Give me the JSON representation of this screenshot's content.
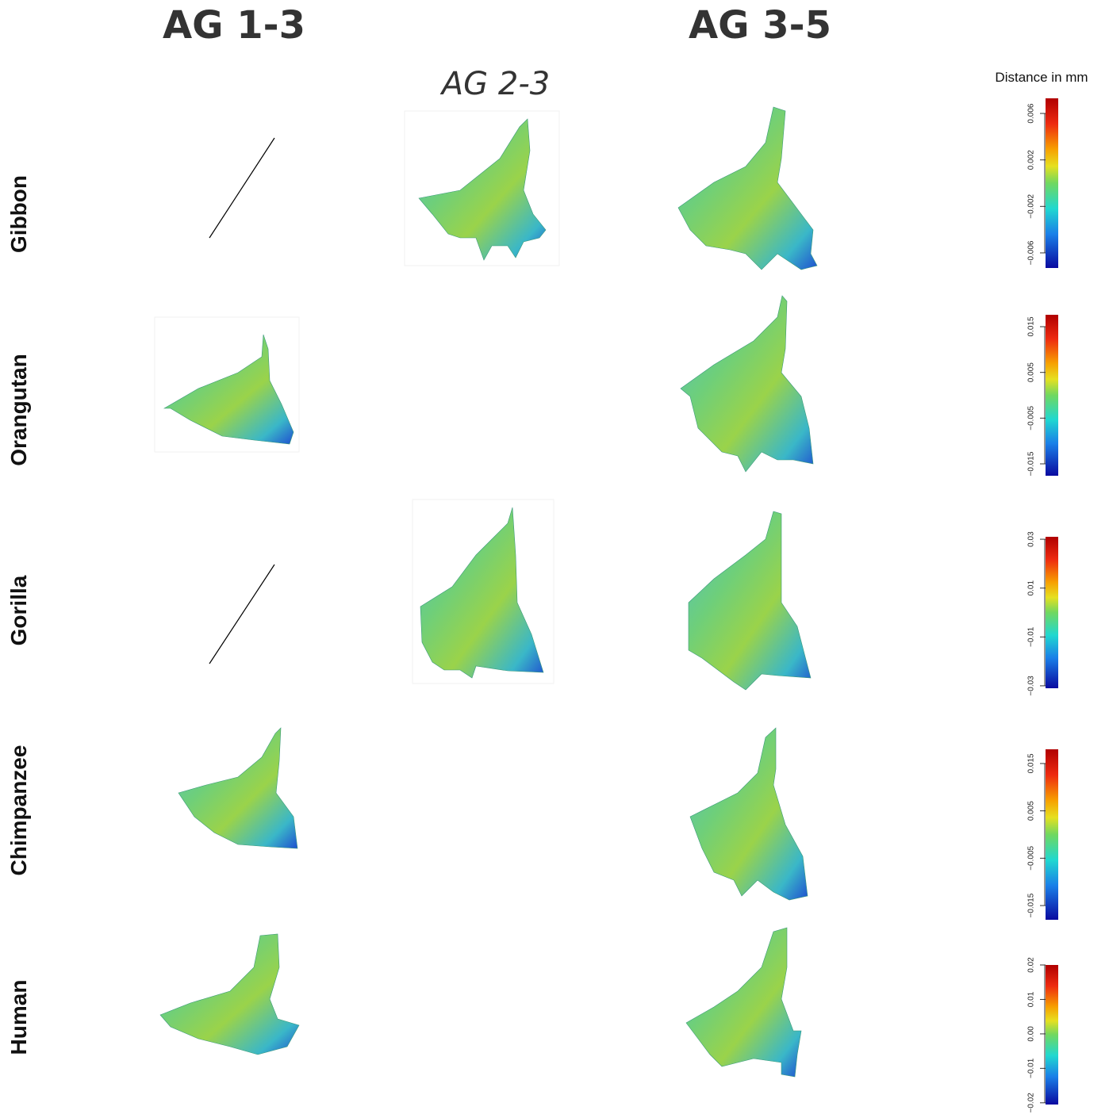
{
  "header": {
    "columns": [
      "AG 1-3",
      "AG 3-5"
    ],
    "subcolumn": "AG 2-3",
    "scale_title": "Distance in mm"
  },
  "rows": [
    "Gibbon",
    "Orangutan",
    "Gorilla",
    "Chimpanzee",
    "Human"
  ],
  "color_scales": [
    {
      "ylim": [
        -0.0073,
        0.0073
      ],
      "yticks": [
        {
          "value": -0.006,
          "label": "−0.006"
        },
        {
          "value": -0.002,
          "label": "−0.002"
        },
        0.002,
        0.006
      ]
    },
    {
      "ylim": [
        -0.0176,
        0.0176
      ],
      "yticks": [
        {
          "value": -0.015,
          "label": "−0.015"
        },
        {
          "value": -0.005,
          "label": "−0.005"
        },
        0.005,
        0.015
      ]
    },
    {
      "ylim": [
        -0.031,
        0.031
      ],
      "yticks": [
        {
          "value": -0.03,
          "label": "−0.03"
        },
        {
          "value": -0.01,
          "label": "−0.01"
        },
        0.01,
        0.03
      ]
    },
    {
      "ylim": [
        -0.018,
        0.018
      ],
      "yticks": [
        {
          "value": -0.015,
          "label": "−0.015"
        },
        {
          "value": -0.005,
          "label": "−0.005"
        },
        0.005,
        0.015
      ]
    },
    {
      "ylim": [
        -0.0205,
        0.02
      ],
      "yticks": [
        {
          "value": -0.02,
          "label": "−0.02"
        },
        {
          "value": -0.01,
          "label": "−0.01"
        },
        {
          "value": 0,
          "label": "0.00"
        },
        0.01,
        0.02
      ]
    }
  ]
}
